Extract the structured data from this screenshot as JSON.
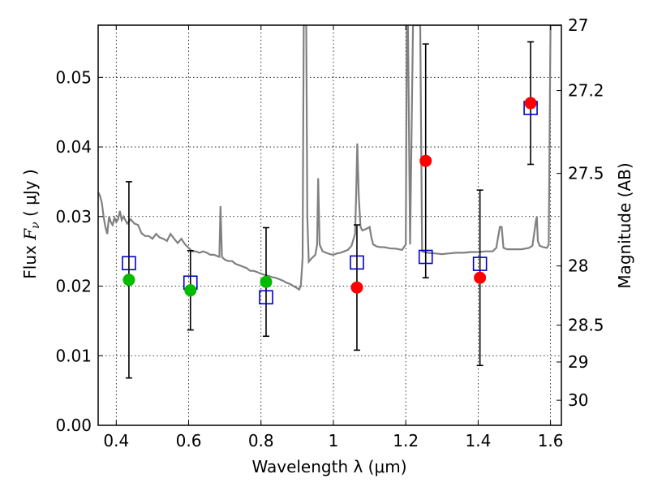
{
  "chart_data": {
    "type": "scatter",
    "xlabel": "Wavelength  λ (μm)",
    "ylabel": "Flux  F_ν  ( μJy )",
    "ylabel_parts": {
      "prefix": "Flux  ",
      "symbol": "F",
      "subscript": "ν",
      "suffix": "  ( μJy )"
    },
    "y2label": "Magnitude (AB)",
    "xlim": [
      0.35,
      1.63
    ],
    "ylim": [
      0.0,
      0.0575
    ],
    "xticks": [
      0.4,
      0.6,
      0.8,
      1.0,
      1.2,
      1.4,
      1.6
    ],
    "xtick_labels": [
      "0.4",
      "0.6",
      "0.8",
      "1",
      "1.2",
      "1.4",
      "1.6"
    ],
    "yticks": [
      0.0,
      0.01,
      0.02,
      0.03,
      0.04,
      0.05
    ],
    "ytick_labels": [
      "0.00",
      "0.01",
      "0.02",
      "0.03",
      "0.04",
      "0.05"
    ],
    "y2ticks": [
      {
        "label": "27",
        "flux": 0.0575
      },
      {
        "label": "27.2",
        "flux": 0.0481
      },
      {
        "label": "27.5",
        "flux": 0.0362
      },
      {
        "label": "28",
        "flux": 0.0229
      },
      {
        "label": "28.5",
        "flux": 0.0144
      },
      {
        "label": "29",
        "flux": 0.0091
      },
      {
        "label": "30",
        "flux": 0.0036
      }
    ],
    "grid": true,
    "colors": {
      "model": "#808080",
      "detections_green": "#00bb00",
      "detections_red": "#ff0000",
      "model_photometry": "#0000cc",
      "errorbar": "#000000"
    },
    "series": [
      {
        "kind": "line",
        "points": [
          [
            0.35,
            0.0335
          ],
          [
            0.355,
            0.033
          ],
          [
            0.36,
            0.032
          ],
          [
            0.365,
            0.03
          ],
          [
            0.37,
            0.0285
          ],
          [
            0.375,
            0.0275
          ],
          [
            0.38,
            0.03
          ],
          [
            0.385,
            0.0292
          ],
          [
            0.39,
            0.0288
          ],
          [
            0.395,
            0.0298
          ],
          [
            0.4,
            0.0292
          ],
          [
            0.405,
            0.0296
          ],
          [
            0.41,
            0.0308
          ],
          [
            0.415,
            0.0295
          ],
          [
            0.42,
            0.03
          ],
          [
            0.43,
            0.029
          ],
          [
            0.44,
            0.0296
          ],
          [
            0.45,
            0.029
          ],
          [
            0.46,
            0.0288
          ],
          [
            0.47,
            0.0276
          ],
          [
            0.48,
            0.0272
          ],
          [
            0.49,
            0.0272
          ],
          [
            0.5,
            0.0268
          ],
          [
            0.51,
            0.0275
          ],
          [
            0.52,
            0.027
          ],
          [
            0.53,
            0.0268
          ],
          [
            0.54,
            0.0265
          ],
          [
            0.55,
            0.0275
          ],
          [
            0.56,
            0.0268
          ],
          [
            0.57,
            0.0262
          ],
          [
            0.58,
            0.0268
          ],
          [
            0.59,
            0.026
          ],
          [
            0.6,
            0.0255
          ],
          [
            0.61,
            0.025
          ],
          [
            0.62,
            0.025
          ],
          [
            0.63,
            0.0248
          ],
          [
            0.64,
            0.025
          ],
          [
            0.65,
            0.0248
          ],
          [
            0.66,
            0.0245
          ],
          [
            0.67,
            0.0245
          ],
          [
            0.68,
            0.0243
          ],
          [
            0.685,
            0.0242
          ],
          [
            0.688,
            0.0315
          ],
          [
            0.692,
            0.0242
          ],
          [
            0.7,
            0.0238
          ],
          [
            0.71,
            0.0236
          ],
          [
            0.72,
            0.0236
          ],
          [
            0.73,
            0.0232
          ],
          [
            0.74,
            0.023
          ],
          [
            0.75,
            0.0228
          ],
          [
            0.76,
            0.0226
          ],
          [
            0.77,
            0.0222
          ],
          [
            0.78,
            0.0222
          ],
          [
            0.79,
            0.022
          ],
          [
            0.8,
            0.0218
          ],
          [
            0.81,
            0.0216
          ],
          [
            0.82,
            0.0215
          ],
          [
            0.83,
            0.0213
          ],
          [
            0.84,
            0.0212
          ],
          [
            0.85,
            0.021
          ],
          [
            0.86,
            0.0208
          ],
          [
            0.87,
            0.0205
          ],
          [
            0.88,
            0.0203
          ],
          [
            0.89,
            0.02
          ],
          [
            0.9,
            0.0197
          ],
          [
            0.905,
            0.0195
          ],
          [
            0.91,
            0.02
          ],
          [
            0.915,
            0.024
          ],
          [
            0.918,
            0.0575
          ],
          [
            0.925,
            0.0575
          ],
          [
            0.928,
            0.03
          ],
          [
            0.932,
            0.0235
          ],
          [
            0.94,
            0.024
          ],
          [
            0.95,
            0.0245
          ],
          [
            0.955,
            0.026
          ],
          [
            0.958,
            0.0355
          ],
          [
            0.962,
            0.026
          ],
          [
            0.97,
            0.025
          ],
          [
            0.98,
            0.0248
          ],
          [
            0.99,
            0.0246
          ],
          [
            1.0,
            0.0245
          ],
          [
            1.01,
            0.0247
          ],
          [
            1.02,
            0.0248
          ],
          [
            1.03,
            0.025
          ],
          [
            1.04,
            0.0252
          ],
          [
            1.05,
            0.0258
          ],
          [
            1.06,
            0.0275
          ],
          [
            1.063,
            0.0335
          ],
          [
            1.066,
            0.0405
          ],
          [
            1.07,
            0.033
          ],
          [
            1.075,
            0.0285
          ],
          [
            1.08,
            0.028
          ],
          [
            1.09,
            0.0282
          ],
          [
            1.1,
            0.0285
          ],
          [
            1.105,
            0.027
          ],
          [
            1.11,
            0.026
          ],
          [
            1.12,
            0.0257
          ],
          [
            1.13,
            0.0256
          ],
          [
            1.14,
            0.0256
          ],
          [
            1.15,
            0.0255
          ],
          [
            1.16,
            0.0254
          ],
          [
            1.17,
            0.0254
          ],
          [
            1.18,
            0.0253
          ],
          [
            1.19,
            0.0252
          ],
          [
            1.2,
            0.026
          ],
          [
            1.203,
            0.0575
          ],
          [
            1.206,
            0.0575
          ],
          [
            1.212,
            0.026
          ],
          [
            1.22,
            0.0575
          ],
          [
            1.24,
            0.0575
          ],
          [
            1.245,
            0.025
          ],
          [
            1.26,
            0.0248
          ],
          [
            1.28,
            0.0247
          ],
          [
            1.3,
            0.0246
          ],
          [
            1.32,
            0.0247
          ],
          [
            1.34,
            0.0248
          ],
          [
            1.36,
            0.0248
          ],
          [
            1.38,
            0.0249
          ],
          [
            1.4,
            0.0249
          ],
          [
            1.42,
            0.025
          ],
          [
            1.44,
            0.025
          ],
          [
            1.45,
            0.0255
          ],
          [
            1.46,
            0.0285
          ],
          [
            1.465,
            0.0285
          ],
          [
            1.47,
            0.0255
          ],
          [
            1.48,
            0.0253
          ],
          [
            1.5,
            0.0253
          ],
          [
            1.52,
            0.0253
          ],
          [
            1.54,
            0.0255
          ],
          [
            1.55,
            0.0258
          ],
          [
            1.56,
            0.0295
          ],
          [
            1.562,
            0.03
          ],
          [
            1.565,
            0.0265
          ],
          [
            1.57,
            0.0258
          ],
          [
            1.58,
            0.0256
          ],
          [
            1.59,
            0.0255
          ],
          [
            1.595,
            0.026
          ],
          [
            1.6,
            0.0575
          ],
          [
            1.63,
            0.0575
          ]
        ]
      },
      {
        "kind": "errorbar",
        "points": [
          {
            "x": 0.435,
            "y": 0.0209,
            "yerr_low": 0.0141,
            "yerr_high": 0.0141,
            "color": "green"
          },
          {
            "x": 0.605,
            "y": 0.0194,
            "yerr_low": 0.0057,
            "yerr_high": 0.0057,
            "color": "green"
          },
          {
            "x": 0.814,
            "y": 0.0206,
            "yerr_low": 0.0078,
            "yerr_high": 0.0078,
            "color": "green"
          },
          {
            "x": 1.065,
            "y": 0.0198,
            "yerr_low": 0.009,
            "yerr_high": 0.009,
            "color": "red"
          },
          {
            "x": 1.255,
            "y": 0.038,
            "yerr_low": 0.0168,
            "yerr_high": 0.0168,
            "color": "red"
          },
          {
            "x": 1.405,
            "y": 0.0212,
            "yerr_low": 0.0126,
            "yerr_high": 0.0126,
            "color": "red"
          },
          {
            "x": 1.545,
            "y": 0.0463,
            "yerr_low": 0.0088,
            "yerr_high": 0.0088,
            "color": "red"
          }
        ]
      },
      {
        "kind": "square",
        "points": [
          [
            0.435,
            0.0233
          ],
          [
            0.605,
            0.0205
          ],
          [
            0.814,
            0.0184
          ],
          [
            1.065,
            0.0234
          ],
          [
            1.255,
            0.0242
          ],
          [
            1.405,
            0.0232
          ],
          [
            1.545,
            0.0456
          ]
        ]
      }
    ]
  }
}
